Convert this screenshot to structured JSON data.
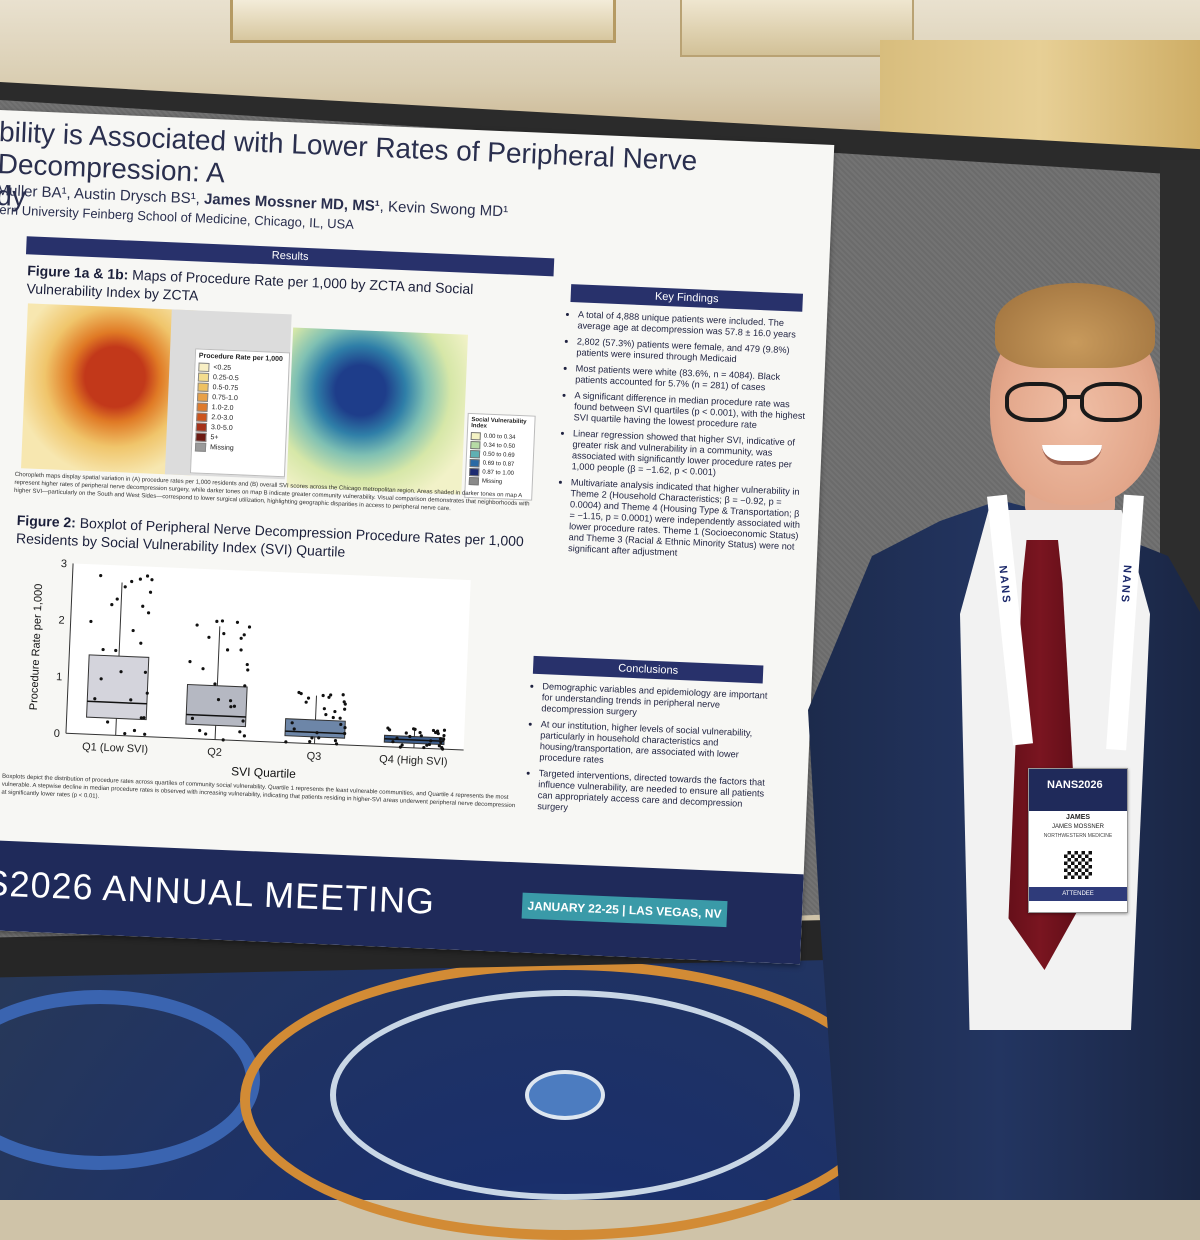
{
  "poster": {
    "title_line1": "bility is Associated with Lower Rates of Peripheral Nerve Decompression: A",
    "title_line2": "dy",
    "authors_prefix": "Muller BA¹, Austin Drysch BS¹, ",
    "authors_bold": "James Mossner MD, MS¹",
    "authors_suffix": ", Kevin Swong MD¹",
    "affiliation": "tern University Feinberg School of Medicine, Chicago, IL, USA",
    "results_header": "Results",
    "fig1_label": "Figure 1a & 1b:",
    "fig1_title": " Maps of Procedure Rate per 1,000 by ZCTA and Social Vulnerability Index by ZCTA",
    "legend_a": {
      "title": "Procedure Rate per 1,000",
      "items": [
        "<0.25",
        "0.25-0.5",
        "0.5-0.75",
        "0.75-1.0",
        "1.0-2.0",
        "2.0-3.0",
        "3.0-5.0",
        "5+",
        "Missing"
      ],
      "colors": [
        "#f8efc4",
        "#f3dc8e",
        "#eec162",
        "#e8a047",
        "#de7a2c",
        "#cc541d",
        "#a5321a",
        "#6d1a12",
        "#9a9a9a"
      ]
    },
    "legend_b": {
      "title": "Social Vulnerability Index",
      "items": [
        "0.00 to 0.34",
        "0.34 to 0.50",
        "0.50 to 0.69",
        "0.69 to 0.87",
        "0.87 to 1.00",
        "Missing"
      ],
      "colors": [
        "#f4f3c4",
        "#b6dba5",
        "#5fb0b3",
        "#2a6aa5",
        "#1c2a72",
        "#8a8a8a"
      ]
    },
    "fig1_caption": "Choropleth maps display spatial variation in (A) procedure rates per 1,000 residents and (B) overall SVI scores across the Chicago metropolitan region. Areas shaded in darker tones on map A represent higher rates of peripheral nerve decompression surgery, while darker tones on map B indicate greater community vulnerability. Visual comparison demonstrates that neighborhoods with higher SVI—particularly on the South and West Sides—correspond to lower surgical utilization, highlighting geographic disparities in access to peripheral nerve care.",
    "fig2_label": "Figure 2:",
    "fig2_title": " Boxplot of Peripheral Nerve Decompression Procedure Rates per 1,000 Residents by Social Vulnerability Index (SVI) Quartile",
    "fig2_caption": "Boxplots depict the distribution of procedure rates across quartiles of community social vulnerability. Quartile 1 represents the least vulnerable communities, and Quartile 4 represents the most vulnerable. A stepwise decline in median procedure rates is observed with increasing vulnerability, indicating that patients residing in higher-SVI areas underwent peripheral nerve decompression at significantly lower rates (p < 0.01).",
    "key_findings_header": "Key Findings",
    "key_findings": [
      "A total of 4,888 unique patients were included. The average age at decompression was 57.8 ± 16.0 years",
      "2,802 (57.3%) patients were female, and 479 (9.8%) patients were insured through Medicaid",
      "Most patients were white (83.6%, n = 4084). Black patients accounted for 5.7% (n = 281) of cases",
      "A significant difference in median procedure rate was found between SVI quartiles (p < 0.001), with the highest SVI quartile having the lowest procedure rate",
      "Linear regression showed that higher SVI, indicative of greater risk and vulnerability in a community, was associated with significantly lower procedure rates per 1,000 people (β = −1.62, p < 0.001)",
      "Multivariate analysis indicated that higher vulnerability in Theme 2 (Household Characteristics; β = −0.92, p = 0.0004) and Theme 4 (Housing Type & Transportation; β = −1.15, p = 0.0001) were independently associated with lower procedure rates. Theme 1 (Socioeconomic Status) and Theme 3 (Racial & Ethnic Minority Status) were not significant after adjustment"
    ],
    "conclusions_header": "Conclusions",
    "conclusions": [
      "Demographic variables and epidemiology are important for understanding trends in peripheral nerve decompression surgery",
      "At our institution, higher levels of social vulnerability, particularly in household characteristics and housing/transportation, are associated with lower procedure rates",
      "Targeted interventions, directed towards the factors that influence vulnerability, are needed to ensure all patients can appropriately access care and decompression surgery"
    ],
    "banner_text": "NS2026 ANNUAL MEETING",
    "banner_date": "JANUARY 22-25 | LAS VEGAS, NV"
  },
  "chart_data": {
    "type": "boxplot",
    "title": "",
    "xlabel": "SVI Quartile",
    "ylabel": "Procedure Rate per 1,000",
    "ylim": [
      0,
      3
    ],
    "yticks": [
      0,
      1,
      2,
      3
    ],
    "categories": [
      "Q1 (Low SVI)",
      "Q2",
      "Q3",
      "Q4 (High SVI)"
    ],
    "boxes": [
      {
        "q1": 0.3,
        "median": 0.58,
        "q3": 1.4,
        "whisker_low": 0.0,
        "whisker_high": 2.7
      },
      {
        "q1": 0.25,
        "median": 0.42,
        "q3": 0.95,
        "whisker_low": 0.0,
        "whisker_high": 2.0
      },
      {
        "q1": 0.12,
        "median": 0.2,
        "q3": 0.42,
        "whisker_low": 0.0,
        "whisker_high": 0.85
      },
      {
        "q1": 0.08,
        "median": 0.14,
        "q3": 0.2,
        "whisker_low": 0.0,
        "whisker_high": 0.32
      }
    ],
    "box_colors": [
      "#d4d4dc",
      "#b5b8c2",
      "#6d86a8",
      "#3e5e8c"
    ]
  },
  "lanyard": {
    "text": "NANS"
  },
  "badge": {
    "logo": "NANS2026",
    "first_name": "JAMES",
    "full_name": "JAMES MOSSNER",
    "org": "NORTHWESTERN MEDICINE",
    "role": "ATTENDEE"
  }
}
